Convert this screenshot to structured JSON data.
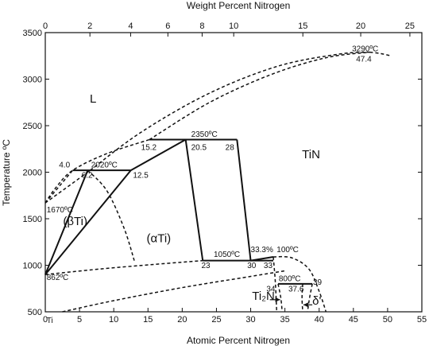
{
  "chart_data": {
    "type": "phase-diagram",
    "title": "",
    "x_bottom": {
      "label": "Atomic Percent Nitrogen",
      "range": [
        0,
        55
      ],
      "ticks": [
        "0",
        "5",
        "10",
        "15",
        "20",
        "25",
        "30",
        "35",
        "40",
        "45",
        "50",
        "55"
      ],
      "tick_values": [
        0,
        5,
        10,
        15,
        20,
        25,
        30,
        35,
        40,
        45,
        50,
        55
      ]
    },
    "x_top": {
      "label": "Weight Percent Nitrogen",
      "ticks": [
        "0",
        "2",
        "4",
        "6",
        "8",
        "10",
        "15",
        "20",
        "25"
      ],
      "tick_values": [
        0,
        2,
        4,
        6,
        8,
        10,
        15,
        20,
        25
      ]
    },
    "y": {
      "label": "Temperature ºC",
      "range": [
        500,
        3500
      ],
      "ticks": [
        "500",
        "1000",
        "1500",
        "2000",
        "2500",
        "3000",
        "3500"
      ],
      "tick_values": [
        500,
        1000,
        1500,
        2000,
        2500,
        3000,
        3500
      ]
    },
    "phase_labels": [
      {
        "text": "L",
        "at": [
          6.5,
          2750
        ]
      },
      {
        "text": "TiN",
        "at": [
          37.5,
          2150
        ]
      },
      {
        "text": "(βTi)",
        "at": [
          2.6,
          1430
        ]
      },
      {
        "text": "(αTi)",
        "at": [
          14.8,
          1250
        ]
      },
      {
        "text": "Ti₂N",
        "at": [
          30.2,
          630
        ]
      },
      {
        "text": "δ'",
        "at": [
          39.0,
          575
        ]
      }
    ],
    "annotations": [
      {
        "text": "3290ºC",
        "at": [
          44.8,
          3300
        ]
      },
      {
        "text": "47.4",
        "at": [
          45.4,
          3190
        ]
      },
      {
        "text": "2350ºC",
        "at": [
          21.3,
          2380
        ]
      },
      {
        "text": "15.2",
        "at": [
          14.0,
          2240
        ]
      },
      {
        "text": "20.5",
        "at": [
          21.3,
          2240
        ]
      },
      {
        "text": "28",
        "at": [
          26.3,
          2240
        ]
      },
      {
        "text": "4.0",
        "at": [
          2.0,
          2050
        ]
      },
      {
        "text": "2020ºC",
        "at": [
          6.7,
          2050
        ]
      },
      {
        "text": "6.2",
        "at": [
          5.3,
          1940
        ]
      },
      {
        "text": "12.5",
        "at": [
          12.8,
          1940
        ]
      },
      {
        "text": "1670ºC",
        "at": [
          0.2,
          1570
        ]
      },
      {
        "text": "862ºC",
        "at": [
          0.2,
          840
        ]
      },
      {
        "text": "1050ºC",
        "at": [
          24.6,
          1090
        ]
      },
      {
        "text": "33.3%",
        "at": [
          30.0,
          1140
        ]
      },
      {
        "text": "100ºC",
        "at": [
          33.8,
          1140
        ]
      },
      {
        "text": "23",
        "at": [
          22.8,
          970
        ]
      },
      {
        "text": "30",
        "at": [
          29.5,
          970
        ]
      },
      {
        "text": "33",
        "at": [
          31.9,
          970
        ]
      },
      {
        "text": "800ºC",
        "at": [
          34.1,
          830
        ]
      },
      {
        "text": "34",
        "at": [
          32.3,
          720
        ]
      },
      {
        "text": "37.6",
        "at": [
          35.5,
          720
        ]
      },
      {
        "text": "39",
        "at": [
          39.1,
          790
        ]
      },
      {
        "text": "Ti",
        "at": [
          0.2,
          380
        ]
      }
    ],
    "solid_lines": [
      [
        [
          4.0,
          2020
        ],
        [
          12.5,
          2020
        ]
      ],
      [
        [
          15.2,
          2350
        ],
        [
          28,
          2350
        ]
      ],
      [
        [
          23,
          1050
        ],
        [
          33.3,
          1050
        ]
      ],
      [
        [
          34,
          800
        ],
        [
          39,
          800
        ]
      ],
      [
        [
          0,
          900
        ],
        [
          6.2,
          2020
        ]
      ],
      [
        [
          0,
          900
        ],
        [
          12.5,
          2020
        ]
      ],
      [
        [
          12.5,
          2020
        ],
        [
          20.5,
          2350
        ]
      ],
      [
        [
          20.5,
          2350
        ],
        [
          23,
          1050
        ]
      ],
      [
        [
          28,
          2350
        ],
        [
          30,
          1050
        ]
      ],
      [
        [
          30,
          1050
        ],
        [
          33.3,
          1090
        ]
      ]
    ],
    "dashed_curves": [
      [
        [
          0,
          1670
        ],
        [
          1.5,
          1830
        ],
        [
          4.0,
          2020
        ],
        [
          9,
          2200
        ],
        [
          15.2,
          2350
        ]
      ],
      [
        [
          0,
          1670
        ],
        [
          4.0,
          2020
        ]
      ],
      [
        [
          6.2,
          2020
        ],
        [
          9,
          1800
        ],
        [
          11.5,
          1400
        ],
        [
          13,
          1050
        ]
      ],
      [
        [
          15.2,
          2350
        ],
        [
          24,
          2750
        ],
        [
          33,
          3050
        ],
        [
          41,
          3230
        ],
        [
          47.4,
          3290
        ]
      ],
      [
        [
          0,
          1670
        ],
        [
          6,
          1990
        ],
        [
          14,
          2430
        ],
        [
          24,
          2850
        ],
        [
          34,
          3140
        ],
        [
          43,
          3270
        ],
        [
          47.4,
          3290
        ]
      ],
      [
        [
          47.4,
          3290
        ],
        [
          49,
          3275
        ],
        [
          50.5,
          3250
        ]
      ],
      [
        [
          0,
          900
        ],
        [
          8,
          960
        ],
        [
          16,
          1010
        ],
        [
          23,
          1050
        ]
      ],
      [
        [
          2.5,
          500
        ],
        [
          10,
          620
        ],
        [
          20,
          760
        ],
        [
          30,
          880
        ],
        [
          35,
          940
        ]
      ],
      [
        [
          33.3,
          1090
        ],
        [
          36,
          1080
        ],
        [
          38.5,
          960
        ],
        [
          40,
          720
        ],
        [
          41,
          500
        ]
      ],
      [
        [
          33.3,
          1090
        ],
        [
          33.6,
          820
        ],
        [
          33.8,
          500
        ]
      ],
      [
        [
          34,
          800
        ],
        [
          34.4,
          650
        ],
        [
          34.6,
          500
        ]
      ],
      [
        [
          37.6,
          800
        ],
        [
          37.5,
          650
        ],
        [
          37.6,
          500
        ]
      ],
      [
        [
          39,
          800
        ],
        [
          38.6,
          650
        ],
        [
          38.3,
          500
        ]
      ]
    ],
    "arrows": [
      {
        "from": [
          32.8,
          630
        ],
        "to": [
          34.3,
          630
        ]
      },
      {
        "from": [
          39.0,
          575
        ],
        "to": [
          37.7,
          575
        ]
      }
    ]
  }
}
